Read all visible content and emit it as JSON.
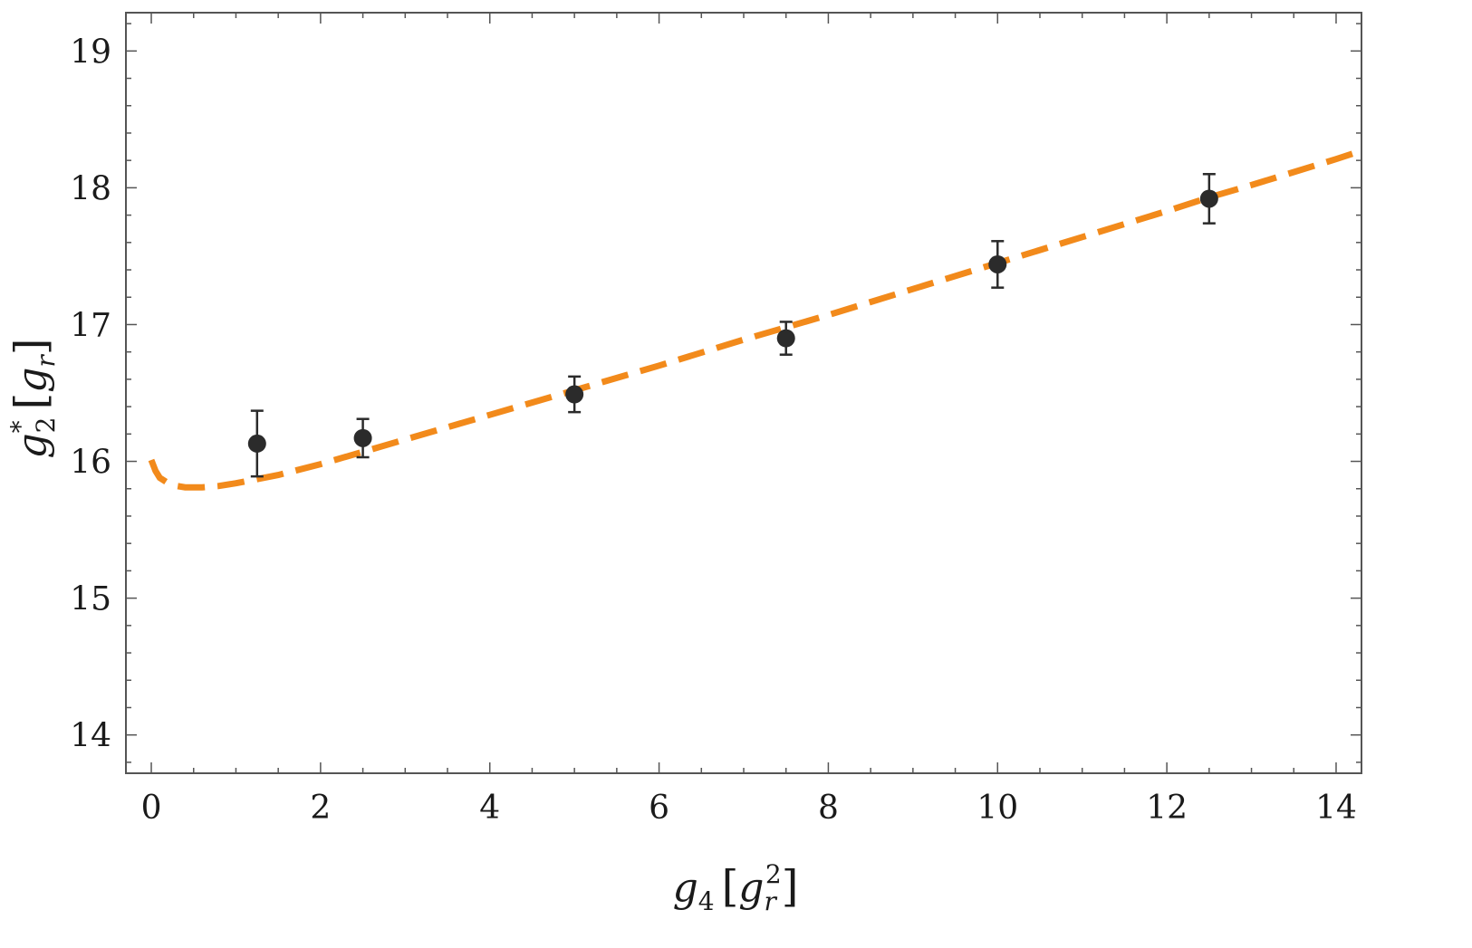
{
  "chart_data": {
    "type": "scatter",
    "title": "",
    "xlabel": {
      "symbol": "g",
      "sub": "4",
      "unit_symbol": "g",
      "unit_sub": "r",
      "unit_sup": "2"
    },
    "ylabel": {
      "symbol": "g",
      "sub": "2",
      "sup": "*",
      "unit_symbol": "g",
      "unit_sub": "r"
    },
    "xlim": [
      -0.3,
      14.3
    ],
    "ylim": [
      13.72,
      19.28
    ],
    "xticks": [
      0,
      2,
      4,
      6,
      8,
      10,
      12,
      14
    ],
    "yticks": [
      14,
      15,
      16,
      17,
      18,
      19
    ],
    "grid": false,
    "legend": "none",
    "series": [
      {
        "kind": "errorbar-points",
        "color": "#2b2b2b",
        "points": [
          {
            "x": 1.25,
            "y": 16.13,
            "err": 0.24
          },
          {
            "x": 2.5,
            "y": 16.17,
            "err": 0.14
          },
          {
            "x": 5.0,
            "y": 16.49,
            "err": 0.13
          },
          {
            "x": 7.5,
            "y": 16.9,
            "err": 0.12
          },
          {
            "x": 10.0,
            "y": 17.44,
            "err": 0.17
          },
          {
            "x": 12.5,
            "y": 17.92,
            "err": 0.18
          }
        ]
      },
      {
        "kind": "dashed-line",
        "color": "#f28a1b",
        "x": [
          0.0,
          0.05,
          0.1,
          0.2,
          0.3,
          0.4,
          0.5,
          0.6,
          0.8,
          1.0,
          1.25,
          1.5,
          2.0,
          2.5,
          3.0,
          4.0,
          5.0,
          6.0,
          7.0,
          7.5,
          8.0,
          9.0,
          10.0,
          11.0,
          12.0,
          12.5,
          13.0,
          14.0,
          14.2
        ],
        "y": [
          16.01,
          15.93,
          15.88,
          15.84,
          15.82,
          15.81,
          15.81,
          15.81,
          15.82,
          15.84,
          15.87,
          15.9,
          15.98,
          16.07,
          16.16,
          16.34,
          16.52,
          16.7,
          16.89,
          16.98,
          17.07,
          17.26,
          17.45,
          17.64,
          17.83,
          17.93,
          18.02,
          18.21,
          18.25
        ]
      }
    ]
  }
}
